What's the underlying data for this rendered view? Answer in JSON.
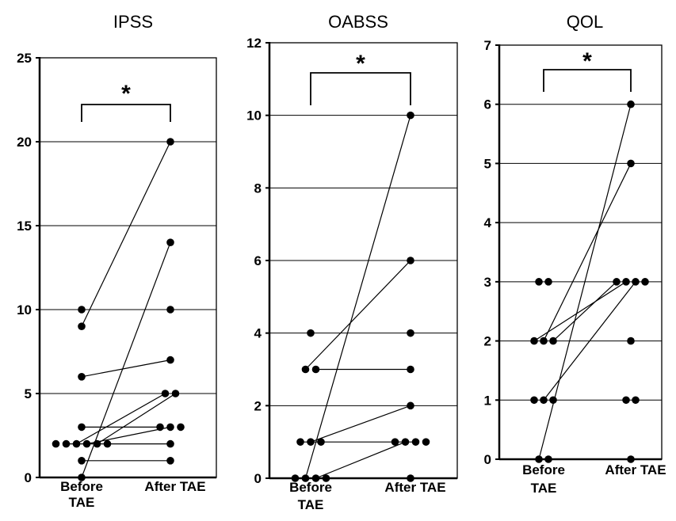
{
  "chart_data": [
    {
      "type": "scatter",
      "title": "IPSS",
      "ylim": [
        0,
        25
      ],
      "yticks": [
        0,
        5,
        10,
        15,
        20,
        25
      ],
      "categories": [
        "Before TAE",
        "After TAE"
      ],
      "category_lines": [
        [
          "Before"
        ],
        [
          "TAE"
        ],
        [
          "After TAE"
        ]
      ],
      "grid": true,
      "annotation": "*",
      "before": [
        2,
        2,
        2,
        2,
        10,
        9,
        6,
        3,
        2,
        2,
        1,
        0
      ],
      "after": [
        20,
        14,
        10,
        7,
        5,
        5,
        3,
        3,
        3,
        2,
        1
      ],
      "pairs": [
        [
          9,
          20
        ],
        [
          0,
          14
        ],
        [
          6,
          7
        ],
        [
          2,
          5
        ],
        [
          2,
          3
        ],
        [
          2,
          2
        ],
        [
          1,
          1
        ],
        [
          3,
          3
        ],
        [
          2,
          5
        ]
      ]
    },
    {
      "type": "scatter",
      "title": "OABSS",
      "ylim": [
        0,
        12
      ],
      "yticks": [
        0,
        2,
        4,
        6,
        8,
        10,
        12
      ],
      "categories": [
        "Before TAE",
        "After TAE"
      ],
      "grid": true,
      "annotation": "*",
      "before": [
        0,
        0,
        0,
        0,
        1,
        1,
        1,
        3,
        3,
        4
      ],
      "after": [
        10,
        6,
        4,
        3,
        2,
        1,
        1,
        1,
        1,
        0
      ],
      "pairs": [
        [
          0,
          10
        ],
        [
          3,
          6
        ],
        [
          3,
          3
        ],
        [
          1,
          2
        ],
        [
          0,
          1
        ],
        [
          1,
          1
        ]
      ]
    },
    {
      "type": "scatter",
      "title": "QOL",
      "ylim": [
        0,
        7
      ],
      "yticks": [
        0,
        1,
        2,
        3,
        4,
        5,
        6,
        7
      ],
      "categories": [
        "Before TAE",
        "After TAE"
      ],
      "grid": true,
      "annotation": "*",
      "before": [
        3,
        3,
        2,
        2,
        2,
        1,
        1,
        1,
        0,
        0
      ],
      "after": [
        6,
        5,
        3,
        3,
        3,
        3,
        2,
        1,
        1,
        0
      ],
      "pairs": [
        [
          0,
          6
        ],
        [
          2,
          5
        ],
        [
          2,
          3
        ],
        [
          1,
          3
        ],
        [
          2,
          3
        ]
      ]
    }
  ]
}
